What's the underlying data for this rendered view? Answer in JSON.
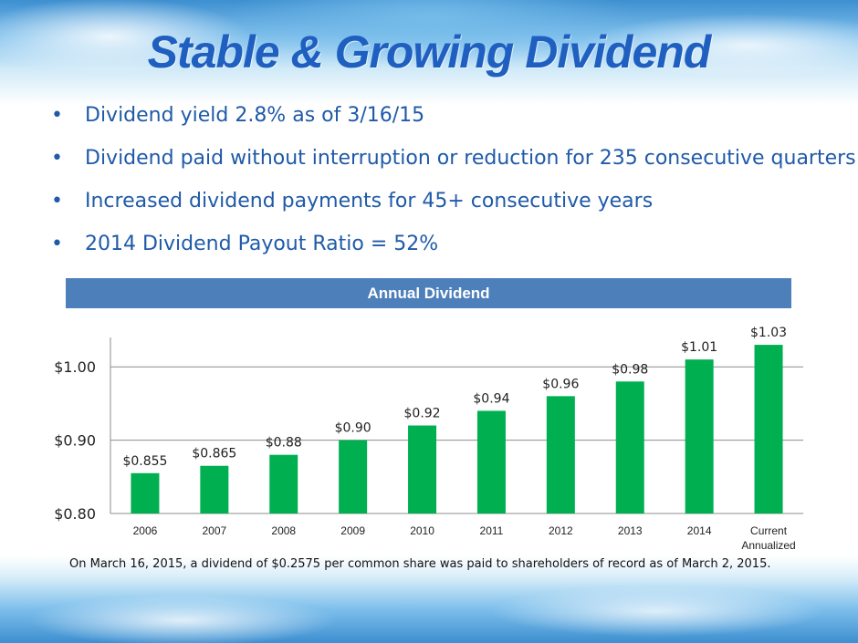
{
  "title": "Stable & Growing Dividend",
  "bullets": [
    "Dividend yield 2.8% as of 3/16/15",
    "Dividend paid without interruption or reduction for 235 consecutive quarters",
    "Increased dividend payments for 45+ consecutive years",
    "2014 Dividend Payout Ratio = 52%"
  ],
  "bullet_glyph": "•",
  "chart_header": "Annual Dividend",
  "footnote": "On March 16, 2015, a dividend of $0.2575 per common share was paid to shareholders of record as of March 2, 2015.",
  "colors": {
    "bar": "#00b050",
    "title": "#1f5fc0",
    "header_bar": "#4d7fba",
    "text": "#1f5aa8"
  },
  "chart_data": {
    "type": "bar",
    "title": "Annual Dividend",
    "categories": [
      "2006",
      "2007",
      "2008",
      "2009",
      "2010",
      "2011",
      "2012",
      "2013",
      "2014",
      "Current Annualized"
    ],
    "values": [
      0.855,
      0.865,
      0.88,
      0.9,
      0.92,
      0.94,
      0.96,
      0.98,
      1.01,
      1.03
    ],
    "data_labels": [
      "$0.855",
      "$0.865",
      "$0.88",
      "$0.90",
      "$0.92",
      "$0.94",
      "$0.96",
      "$0.98",
      "$1.01",
      "$1.03"
    ],
    "ylim": [
      0.8,
      1.05
    ],
    "yticks": [
      0.8,
      0.9,
      1.0
    ],
    "ytick_labels": [
      "$0.80",
      "$0.90",
      "$1.00"
    ],
    "grid": true,
    "legend": "none"
  }
}
